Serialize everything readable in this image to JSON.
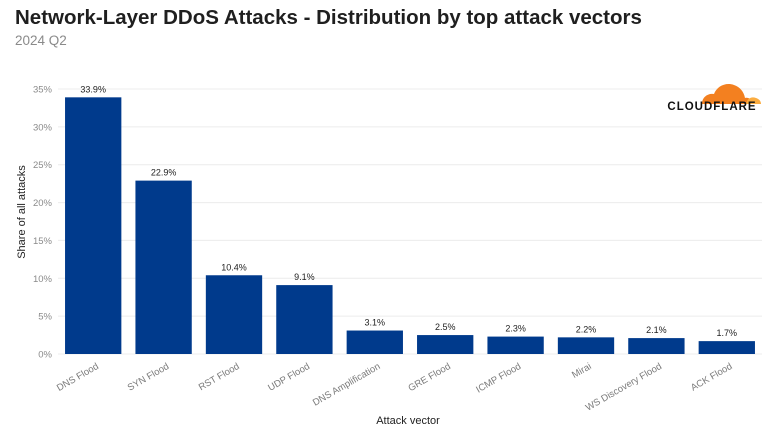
{
  "title": "Network-Layer DDoS Attacks - Distribution by top attack vectors",
  "subtitle": "2024 Q2",
  "logo": {
    "text": "CLOUDFLARE",
    "colors": {
      "orange": "#f38020",
      "light": "#fbad41"
    }
  },
  "chart_data": {
    "type": "bar",
    "title": "Network-Layer DDoS Attacks - Distribution by top attack vectors",
    "subtitle": "2024 Q2",
    "xlabel": "Attack vector",
    "ylabel": "Share of all attacks",
    "ylim": [
      0,
      35
    ],
    "yticks": [
      0,
      5,
      10,
      15,
      20,
      25,
      30,
      35
    ],
    "ytick_labels": [
      "0%",
      "5%",
      "10%",
      "15%",
      "20%",
      "25%",
      "30%",
      "35%"
    ],
    "grid": true,
    "bar_color": "#003a8c",
    "categories": [
      "DNS Flood",
      "SYN Flood",
      "RST Flood",
      "UDP Flood",
      "DNS Amplification",
      "GRE Flood",
      "ICMP Flood",
      "Mirai",
      "WS Discovery Flood",
      "ACK Flood"
    ],
    "values": [
      33.9,
      22.9,
      10.4,
      9.1,
      3.1,
      2.5,
      2.3,
      2.2,
      2.1,
      1.7
    ],
    "data_labels": [
      "33.9%",
      "22.9%",
      "10.4%",
      "9.1%",
      "3.1%",
      "2.5%",
      "2.3%",
      "2.2%",
      "2.1%",
      "1.7%"
    ]
  }
}
